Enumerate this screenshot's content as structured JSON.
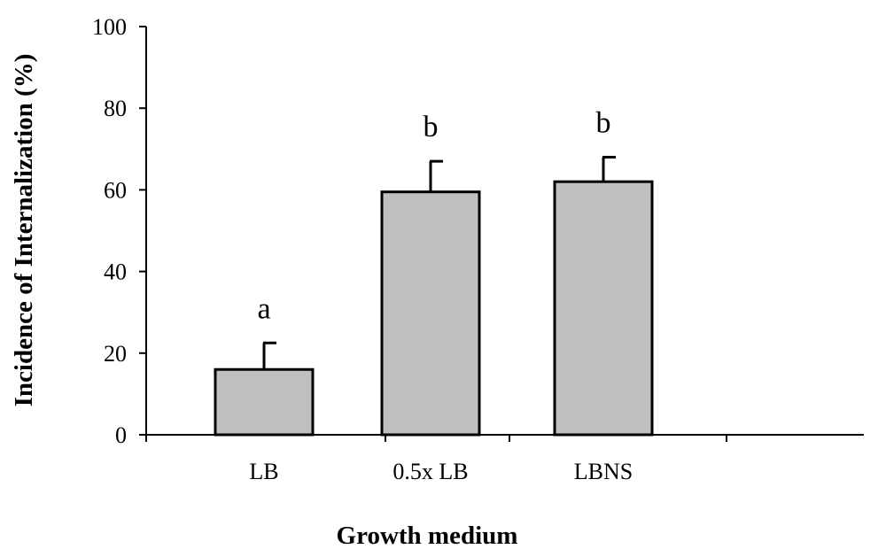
{
  "chart_data": {
    "type": "bar",
    "title": "",
    "xlabel": "Growth medium",
    "ylabel": "Incidence of Internalization (%)",
    "ylim": [
      0,
      100
    ],
    "yticks": [
      0,
      20,
      40,
      60,
      80,
      100
    ],
    "categories": [
      "LB",
      "0.5x LB",
      "LBNS"
    ],
    "values": [
      16,
      59.5,
      62
    ],
    "error_upper": [
      6.5,
      7.5,
      6
    ],
    "significance_letters": [
      "a",
      "b",
      "b"
    ],
    "bar_color": "#c0c0c0",
    "bar_edge_color": "#000000",
    "grid": false,
    "legend": "none"
  }
}
